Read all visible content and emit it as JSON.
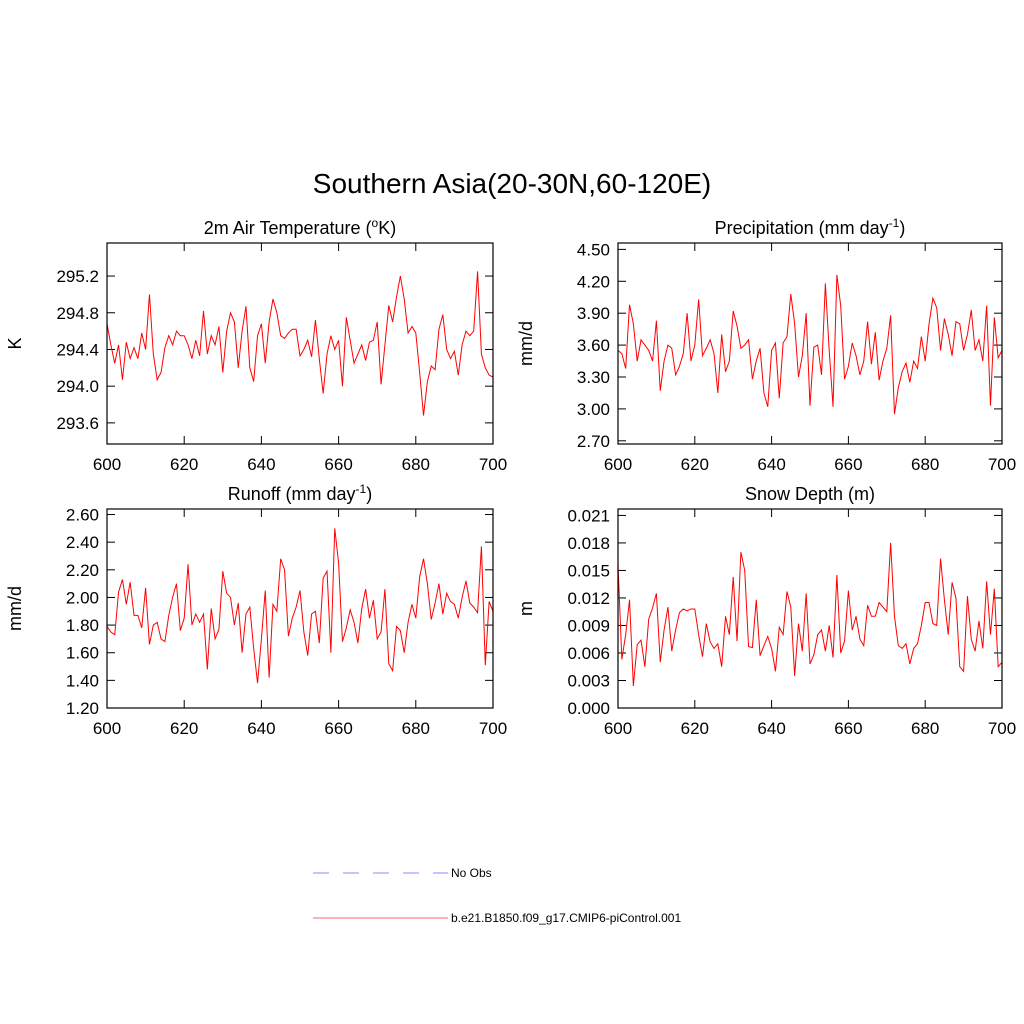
{
  "title": "Southern Asia(20-30N,60-120E)",
  "legend": [
    {
      "name": "No Obs",
      "color": "#a0a0ff",
      "dashed": true
    },
    {
      "name": "b.e21.B1850.f09_g17.CMIP6-piControl.001",
      "color": "#ff8080",
      "dashed": false
    }
  ],
  "chart_data": [
    {
      "type": "line",
      "title": [
        "2m Air Temperature (",
        "o",
        "K)"
      ],
      "ylabel": "K",
      "color": "#ff0000",
      "xlim": [
        600,
        700
      ],
      "xticks": [
        600,
        620,
        640,
        660,
        680,
        700
      ],
      "ylim": [
        293.37,
        295.56
      ],
      "yticks": [
        293.6,
        {
          "value": 294,
          "label": "294.0"
        },
        294.4,
        294.8,
        295.2
      ],
      "x": [
        600,
        601,
        602,
        603,
        604,
        605,
        606,
        607,
        608,
        609,
        610,
        611,
        612,
        613,
        614,
        615,
        616,
        617,
        618,
        619,
        620,
        621,
        622,
        623,
        624,
        625,
        626,
        627,
        628,
        629,
        630,
        631,
        632,
        633,
        634,
        635,
        636,
        637,
        638,
        639,
        640,
        641,
        642,
        643,
        644,
        645,
        646,
        647,
        648,
        649,
        650,
        651,
        652,
        653,
        654,
        655,
        656,
        657,
        658,
        659,
        660,
        661,
        662,
        663,
        664,
        665,
        666,
        667,
        668,
        669,
        670,
        671,
        672,
        673,
        674,
        675,
        676,
        677,
        678,
        679,
        680,
        681,
        682,
        683,
        684,
        685,
        686,
        687,
        688,
        689,
        690,
        691,
        692,
        693,
        694,
        695,
        696,
        697,
        698,
        699,
        700
      ],
      "values": [
        294.68,
        294.45,
        294.25,
        294.45,
        294.07,
        294.48,
        294.3,
        294.42,
        294.3,
        294.58,
        294.4,
        295.0,
        294.35,
        294.07,
        294.15,
        294.42,
        294.55,
        294.45,
        294.6,
        294.55,
        294.55,
        294.45,
        294.3,
        294.5,
        294.33,
        294.82,
        294.35,
        294.55,
        294.45,
        294.65,
        294.15,
        294.6,
        294.8,
        294.7,
        294.2,
        294.6,
        294.87,
        294.2,
        294.05,
        294.55,
        294.68,
        294.25,
        294.7,
        294.95,
        294.8,
        294.55,
        294.52,
        294.58,
        294.62,
        294.62,
        294.33,
        294.4,
        294.5,
        294.32,
        294.72,
        294.3,
        293.92,
        294.35,
        294.55,
        294.4,
        294.5,
        294.0,
        294.75,
        294.5,
        294.25,
        294.35,
        294.45,
        294.28,
        294.48,
        294.5,
        294.7,
        294.02,
        294.45,
        294.88,
        294.7,
        294.97,
        295.2,
        294.95,
        294.58,
        294.65,
        294.58,
        294.15,
        293.68,
        294.05,
        294.22,
        294.18,
        294.62,
        294.78,
        294.4,
        294.3,
        294.38,
        294.12,
        294.45,
        294.6,
        294.55,
        294.6,
        295.25,
        294.35,
        294.2,
        294.12,
        294.1
      ]
    },
    {
      "type": "line",
      "title": [
        "Precipitation (mm day",
        "-1",
        ")"
      ],
      "ylabel": "mm/d",
      "color": "#ff0000",
      "xlim": [
        600,
        700
      ],
      "xticks": [
        600,
        620,
        640,
        660,
        680,
        700
      ],
      "ylim": [
        2.67,
        4.56
      ],
      "yticks": [
        {
          "value": 2.7,
          "label": "2.70"
        },
        {
          "value": 3,
          "label": "3.00"
        },
        {
          "value": 3.3,
          "label": "3.30"
        },
        {
          "value": 3.6,
          "label": "3.60"
        },
        {
          "value": 3.9,
          "label": "3.90"
        },
        {
          "value": 4.2,
          "label": "4.20"
        },
        {
          "value": 4.5,
          "label": "4.50"
        }
      ],
      "x": [
        600,
        601,
        602,
        603,
        604,
        605,
        606,
        607,
        608,
        609,
        610,
        611,
        612,
        613,
        614,
        615,
        616,
        617,
        618,
        619,
        620,
        621,
        622,
        623,
        624,
        625,
        626,
        627,
        628,
        629,
        630,
        631,
        632,
        633,
        634,
        635,
        636,
        637,
        638,
        639,
        640,
        641,
        642,
        643,
        644,
        645,
        646,
        647,
        648,
        649,
        650,
        651,
        652,
        653,
        654,
        655,
        656,
        657,
        658,
        659,
        660,
        661,
        662,
        663,
        664,
        665,
        666,
        667,
        668,
        669,
        670,
        671,
        672,
        673,
        674,
        675,
        676,
        677,
        678,
        679,
        680,
        681,
        682,
        683,
        684,
        685,
        686,
        687,
        688,
        689,
        690,
        691,
        692,
        693,
        694,
        695,
        696,
        697,
        698,
        699,
        700
      ],
      "values": [
        3.55,
        3.52,
        3.38,
        3.98,
        3.8,
        3.45,
        3.65,
        3.6,
        3.55,
        3.45,
        3.83,
        3.17,
        3.45,
        3.6,
        3.57,
        3.32,
        3.4,
        3.52,
        3.9,
        3.45,
        3.6,
        4.03,
        3.5,
        3.57,
        3.65,
        3.52,
        3.15,
        3.7,
        3.35,
        3.45,
        3.92,
        3.78,
        3.57,
        3.6,
        3.65,
        3.28,
        3.45,
        3.57,
        3.15,
        3.02,
        3.55,
        3.62,
        3.1,
        3.62,
        3.68,
        4.08,
        3.8,
        3.3,
        3.5,
        3.9,
        3.03,
        3.58,
        3.6,
        3.32,
        4.18,
        3.55,
        3.02,
        4.26,
        3.97,
        3.28,
        3.4,
        3.62,
        3.5,
        3.32,
        3.45,
        3.82,
        3.42,
        3.72,
        3.27,
        3.45,
        3.57,
        3.88,
        2.95,
        3.2,
        3.35,
        3.43,
        3.25,
        3.45,
        3.38,
        3.68,
        3.45,
        3.8,
        4.04,
        3.95,
        3.55,
        3.85,
        3.7,
        3.5,
        3.82,
        3.8,
        3.55,
        3.7,
        3.93,
        3.55,
        3.65,
        3.45,
        3.97,
        3.03,
        3.86,
        3.48,
        3.55
      ]
    },
    {
      "type": "line",
      "title": [
        "Runoff (mm day",
        "-1",
        ")"
      ],
      "ylabel": "mm/d",
      "color": "#ff0000",
      "xlim": [
        600,
        700
      ],
      "xticks": [
        600,
        620,
        640,
        660,
        680,
        700
      ],
      "ylim": [
        1.2,
        2.64
      ],
      "yticks": [
        {
          "value": 1.2,
          "label": "1.20"
        },
        {
          "value": 1.4,
          "label": "1.40"
        },
        {
          "value": 1.6,
          "label": "1.60"
        },
        {
          "value": 1.8,
          "label": "1.80"
        },
        {
          "value": 2,
          "label": "2.00"
        },
        {
          "value": 2.2,
          "label": "2.20"
        },
        {
          "value": 2.4,
          "label": "2.40"
        },
        {
          "value": 2.6,
          "label": "2.60"
        }
      ],
      "x": [
        600,
        601,
        602,
        603,
        604,
        605,
        606,
        607,
        608,
        609,
        610,
        611,
        612,
        613,
        614,
        615,
        616,
        617,
        618,
        619,
        620,
        621,
        622,
        623,
        624,
        625,
        626,
        627,
        628,
        629,
        630,
        631,
        632,
        633,
        634,
        635,
        636,
        637,
        638,
        639,
        640,
        641,
        642,
        643,
        644,
        645,
        646,
        647,
        648,
        649,
        650,
        651,
        652,
        653,
        654,
        655,
        656,
        657,
        658,
        659,
        660,
        661,
        662,
        663,
        664,
        665,
        666,
        667,
        668,
        669,
        670,
        671,
        672,
        673,
        674,
        675,
        676,
        677,
        678,
        679,
        680,
        681,
        682,
        683,
        684,
        685,
        686,
        687,
        688,
        689,
        690,
        691,
        692,
        693,
        694,
        695,
        696,
        697,
        698,
        699,
        700
      ],
      "values": [
        1.79,
        1.75,
        1.73,
        2.04,
        2.13,
        1.95,
        2.11,
        1.87,
        1.87,
        1.78,
        2.07,
        1.66,
        1.8,
        1.82,
        1.7,
        1.68,
        1.87,
        2.0,
        2.1,
        1.76,
        1.85,
        2.24,
        1.8,
        1.88,
        1.82,
        1.88,
        1.48,
        1.92,
        1.7,
        1.77,
        2.19,
        2.03,
        2.0,
        1.8,
        1.96,
        1.6,
        1.88,
        1.93,
        1.63,
        1.38,
        1.7,
        2.05,
        1.42,
        1.95,
        1.9,
        2.28,
        2.2,
        1.72,
        1.85,
        1.93,
        2.05,
        1.75,
        1.58,
        1.88,
        1.9,
        1.67,
        2.14,
        2.19,
        1.6,
        2.5,
        2.25,
        1.68,
        1.78,
        1.91,
        1.82,
        1.67,
        1.92,
        2.06,
        1.85,
        1.98,
        1.7,
        1.75,
        2.06,
        1.52,
        1.47,
        1.79,
        1.76,
        1.6,
        1.82,
        1.95,
        1.85,
        2.15,
        2.28,
        2.1,
        1.84,
        1.96,
        2.1,
        1.88,
        2.03,
        1.97,
        1.95,
        1.85,
        2.0,
        2.12,
        1.96,
        1.93,
        1.89,
        2.37,
        1.51,
        1.97,
        1.9
      ]
    },
    {
      "type": "line",
      "title": [
        "Snow Depth (m)"
      ],
      "ylabel": "m",
      "color": "#ff0000",
      "xlim": [
        600,
        700
      ],
      "xticks": [
        600,
        620,
        640,
        660,
        680,
        700
      ],
      "ylim": [
        0,
        0.0217
      ],
      "yticks": [
        {
          "value": 0,
          "label": "0.000"
        },
        {
          "value": 0.003,
          "label": "0.003"
        },
        {
          "value": 0.006,
          "label": "0.006"
        },
        {
          "value": 0.009,
          "label": "0.009"
        },
        {
          "value": 0.012,
          "label": "0.012"
        },
        {
          "value": 0.015,
          "label": "0.015"
        },
        {
          "value": 0.018,
          "label": "0.018"
        },
        {
          "value": 0.021,
          "label": "0.021"
        }
      ],
      "x": [
        600,
        601,
        602,
        603,
        604,
        605,
        606,
        607,
        608,
        609,
        610,
        611,
        612,
        613,
        614,
        615,
        616,
        617,
        618,
        619,
        620,
        621,
        622,
        623,
        624,
        625,
        626,
        627,
        628,
        629,
        630,
        631,
        632,
        633,
        634,
        635,
        636,
        637,
        638,
        639,
        640,
        641,
        642,
        643,
        644,
        645,
        646,
        647,
        648,
        649,
        650,
        651,
        652,
        653,
        654,
        655,
        656,
        657,
        658,
        659,
        660,
        661,
        662,
        663,
        664,
        665,
        666,
        667,
        668,
        669,
        670,
        671,
        672,
        673,
        674,
        675,
        676,
        677,
        678,
        679,
        680,
        681,
        682,
        683,
        684,
        685,
        686,
        687,
        688,
        689,
        690,
        691,
        692,
        693,
        694,
        695,
        696,
        697,
        698,
        699,
        700
      ],
      "values": [
        0.0157,
        0.0053,
        0.008,
        0.0118,
        0.0024,
        0.0069,
        0.0074,
        0.0045,
        0.0097,
        0.0109,
        0.0125,
        0.005,
        0.0085,
        0.011,
        0.0062,
        0.0085,
        0.0104,
        0.0108,
        0.0106,
        0.0108,
        0.0108,
        0.008,
        0.0056,
        0.0092,
        0.0072,
        0.0065,
        0.007,
        0.0045,
        0.01,
        0.008,
        0.0143,
        0.0073,
        0.017,
        0.015,
        0.0067,
        0.0066,
        0.0118,
        0.0057,
        0.0068,
        0.0078,
        0.0065,
        0.004,
        0.0088,
        0.008,
        0.0127,
        0.011,
        0.0035,
        0.0092,
        0.0062,
        0.0125,
        0.0048,
        0.0058,
        0.008,
        0.0085,
        0.0062,
        0.009,
        0.0055,
        0.0145,
        0.006,
        0.0073,
        0.0128,
        0.0085,
        0.01,
        0.0075,
        0.0068,
        0.0112,
        0.01,
        0.01,
        0.0115,
        0.011,
        0.0105,
        0.018,
        0.01,
        0.0068,
        0.0065,
        0.007,
        0.0048,
        0.0065,
        0.007,
        0.009,
        0.0115,
        0.0115,
        0.0092,
        0.009,
        0.0163,
        0.0118,
        0.008,
        0.0137,
        0.012,
        0.0045,
        0.004,
        0.0122,
        0.0075,
        0.0062,
        0.0095,
        0.0065,
        0.0138,
        0.008,
        0.013,
        0.0045,
        0.005
      ]
    }
  ]
}
